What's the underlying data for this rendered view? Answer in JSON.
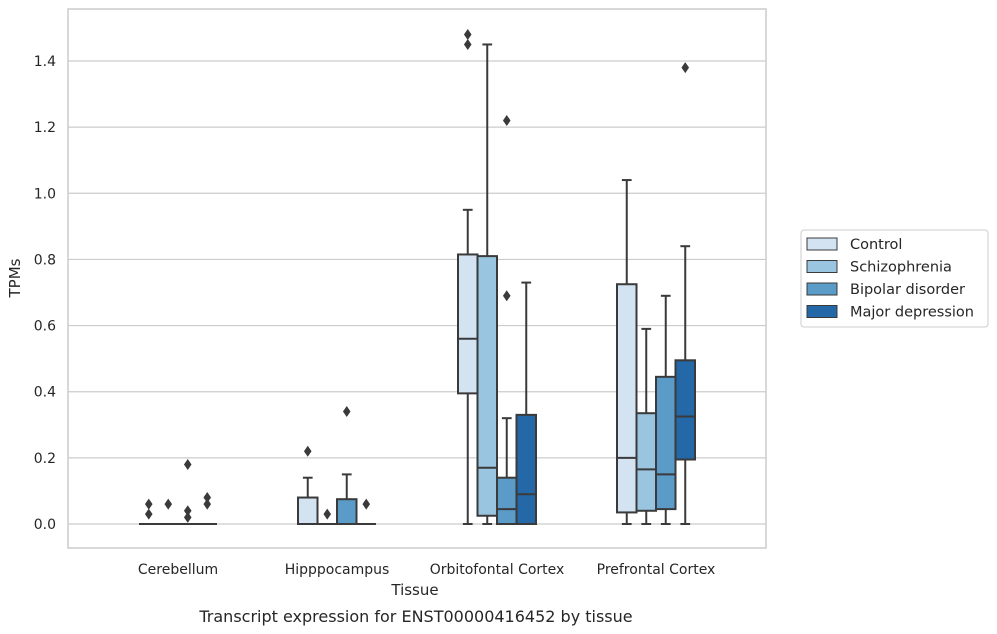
{
  "chart_data": {
    "type": "box",
    "title": "",
    "caption": "Transcript expression for ENST00000416452 by tissue",
    "xlabel": "Tissue",
    "ylabel": "TPMs",
    "ylim": [
      -0.07,
      1.55
    ],
    "yticks": [
      "0.0",
      "0.2",
      "0.4",
      "0.6",
      "0.8",
      "1.0",
      "1.2",
      "1.4"
    ],
    "grid": true,
    "legend_position": "right",
    "categories": [
      "Cerebellum",
      "Hipppocampus",
      "Orbitofontal Cortex",
      "Prefrontal Cortex"
    ],
    "series": [
      {
        "name": "Control",
        "color": "#d3e3f1",
        "boxes": [
          {
            "q1": 0,
            "median": 0,
            "q3": 0,
            "whisker_low": 0,
            "whisker_high": 0,
            "outliers": [
              0.03,
              0.06
            ]
          },
          {
            "q1": 0,
            "median": 0,
            "q3": 0.08,
            "whisker_low": 0,
            "whisker_high": 0.14,
            "outliers": [
              0.22
            ]
          },
          {
            "q1": 0.395,
            "median": 0.56,
            "q3": 0.815,
            "whisker_low": 0,
            "whisker_high": 0.95,
            "outliers": [
              1.45,
              1.48
            ]
          },
          {
            "q1": 0.035,
            "median": 0.2,
            "q3": 0.725,
            "whisker_low": 0,
            "whisker_high": 1.04,
            "outliers": []
          }
        ]
      },
      {
        "name": "Schizophrenia",
        "color": "#9ac5e0",
        "boxes": [
          {
            "q1": 0,
            "median": 0,
            "q3": 0,
            "whisker_low": 0,
            "whisker_high": 0,
            "outliers": [
              0.06
            ]
          },
          {
            "q1": 0,
            "median": 0,
            "q3": 0,
            "whisker_low": 0,
            "whisker_high": 0,
            "outliers": [
              0.03
            ]
          },
          {
            "q1": 0.025,
            "median": 0.17,
            "q3": 0.81,
            "whisker_low": 0,
            "whisker_high": 1.45,
            "outliers": []
          },
          {
            "q1": 0.04,
            "median": 0.165,
            "q3": 0.335,
            "whisker_low": 0,
            "whisker_high": 0.59,
            "outliers": []
          }
        ]
      },
      {
        "name": "Bipolar disorder",
        "color": "#5a9bc8",
        "boxes": [
          {
            "q1": 0,
            "median": 0,
            "q3": 0,
            "whisker_low": 0,
            "whisker_high": 0,
            "outliers": [
              0.02,
              0.04,
              0.18
            ]
          },
          {
            "q1": 0,
            "median": 0,
            "q3": 0.075,
            "whisker_low": 0,
            "whisker_high": 0.15,
            "outliers": [
              0.34
            ]
          },
          {
            "q1": 0,
            "median": 0.045,
            "q3": 0.14,
            "whisker_low": 0,
            "whisker_high": 0.32,
            "outliers": [
              0.69,
              1.22
            ]
          },
          {
            "q1": 0.045,
            "median": 0.15,
            "q3": 0.445,
            "whisker_low": 0,
            "whisker_high": 0.69,
            "outliers": []
          }
        ]
      },
      {
        "name": "Major depression",
        "color": "#2468a8",
        "boxes": [
          {
            "q1": 0,
            "median": 0,
            "q3": 0,
            "whisker_low": 0,
            "whisker_high": 0,
            "outliers": [
              0.06,
              0.08
            ]
          },
          {
            "q1": 0,
            "median": 0,
            "q3": 0,
            "whisker_low": 0,
            "whisker_high": 0,
            "outliers": [
              0.06
            ]
          },
          {
            "q1": 0,
            "median": 0.09,
            "q3": 0.33,
            "whisker_low": 0,
            "whisker_high": 0.73,
            "outliers": []
          },
          {
            "q1": 0.195,
            "median": 0.325,
            "q3": 0.495,
            "whisker_low": 0,
            "whisker_high": 0.84,
            "outliers": [
              1.38
            ]
          }
        ]
      }
    ]
  }
}
